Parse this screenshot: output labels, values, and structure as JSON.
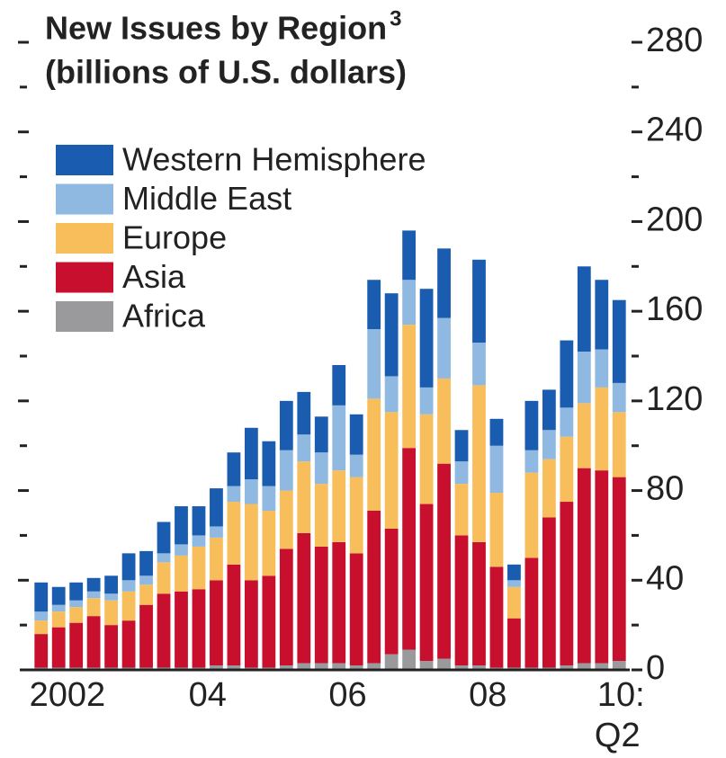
{
  "chart_data": {
    "type": "stacked_bar",
    "title": "New Issues by Region",
    "title_footnote": "3",
    "subtitle": "(billions of U.S. dollars)",
    "categories": [
      "2002",
      null,
      null,
      null,
      null,
      null,
      null,
      null,
      "04",
      null,
      null,
      null,
      null,
      null,
      null,
      null,
      "06",
      null,
      null,
      null,
      null,
      null,
      null,
      null,
      "08",
      null,
      null,
      null,
      null,
      null,
      null,
      null,
      null,
      "10:"
    ],
    "x_tick_sublabel": "Q2",
    "series": [
      {
        "name": "Africa",
        "color": "#9a9a9c",
        "values": [
          1,
          1,
          1,
          1,
          1,
          1,
          1,
          1,
          1,
          1,
          2,
          2,
          1,
          1,
          2,
          3,
          3,
          3,
          2,
          3,
          7,
          9,
          4,
          5,
          2,
          2,
          1,
          1,
          1,
          1,
          2,
          3,
          3,
          4
        ]
      },
      {
        "name": "Asia",
        "color": "#c8102e",
        "values": [
          15,
          18,
          20,
          23,
          19,
          21,
          28,
          33,
          34,
          35,
          38,
          45,
          39,
          41,
          52,
          58,
          52,
          54,
          50,
          68,
          56,
          90,
          70,
          87,
          58,
          55,
          45,
          22,
          49,
          67,
          73,
          87,
          86,
          82
        ]
      },
      {
        "name": "Europe",
        "color": "#f9be5c",
        "values": [
          6,
          7,
          7,
          8,
          11,
          13,
          9,
          14,
          16,
          19,
          19,
          28,
          34,
          29,
          26,
          32,
          28,
          32,
          34,
          50,
          52,
          55,
          40,
          38,
          23,
          70,
          33,
          14,
          38,
          26,
          29,
          29,
          37,
          29
        ]
      },
      {
        "name": "Middle East",
        "color": "#8fb9e1",
        "values": [
          4,
          3,
          3,
          3,
          3,
          5,
          4,
          4,
          5,
          5,
          5,
          7,
          11,
          11,
          18,
          12,
          14,
          29,
          10,
          31,
          16,
          20,
          12,
          27,
          10,
          19,
          21,
          3,
          10,
          13,
          13,
          23,
          17,
          13
        ]
      },
      {
        "name": "Western Hemisphere",
        "color": "#1a5caf",
        "values": [
          13,
          8,
          8,
          6,
          8,
          12,
          11,
          14,
          17,
          13,
          17,
          15,
          23,
          20,
          22,
          19,
          16,
          18,
          18,
          22,
          37,
          22,
          44,
          31,
          14,
          37,
          12,
          7,
          22,
          18,
          30,
          38,
          31,
          37
        ]
      }
    ],
    "ylim": [
      0,
      280
    ],
    "yticks": [
      0,
      40,
      80,
      120,
      160,
      200,
      240,
      280
    ],
    "yticks_minor": [
      20,
      60,
      100,
      140,
      180,
      220,
      260
    ]
  }
}
